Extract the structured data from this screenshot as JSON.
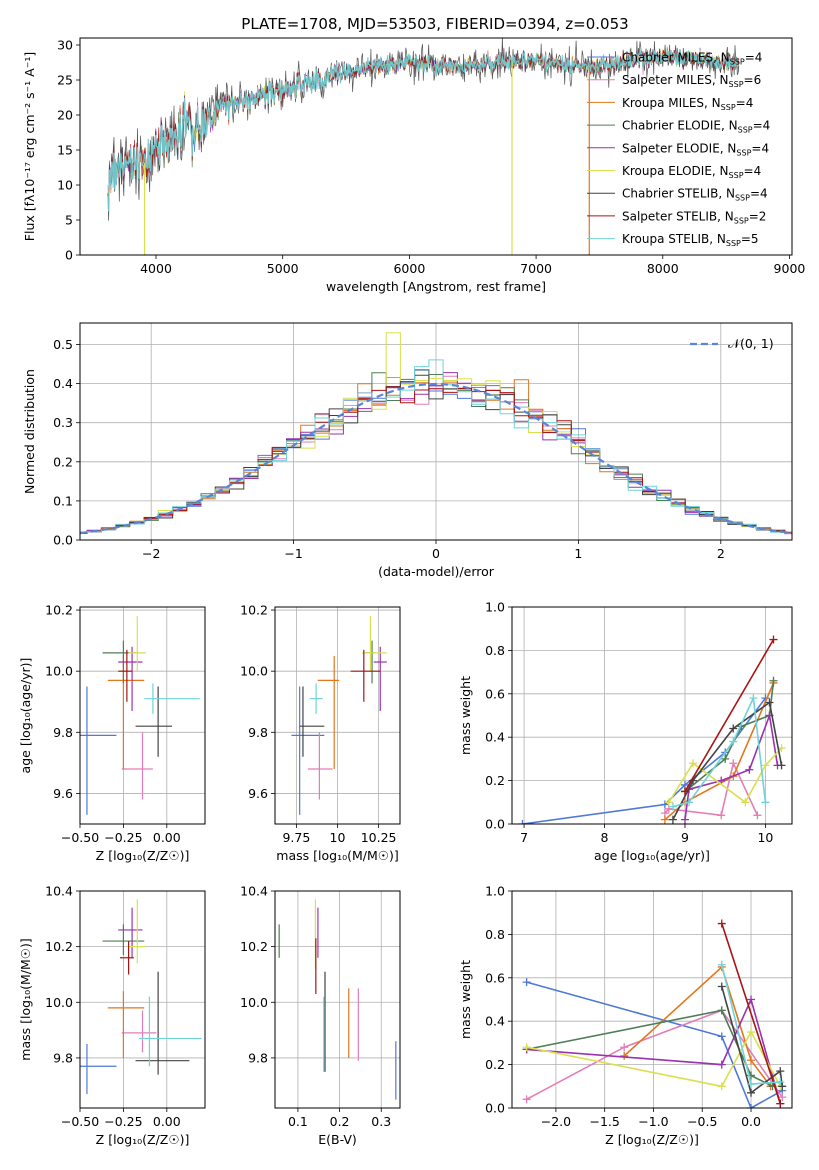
{
  "title": "PLATE=1708, MJD=53503, FIBERID=0394, z=0.053",
  "legend_entries": [
    {
      "name": "Chabrier MILES",
      "n": "4",
      "color": "#4f79d6"
    },
    {
      "name": "Salpeter MILES",
      "n": "6",
      "color": "#e37db7"
    },
    {
      "name": "Kroupa MILES",
      "n": "4",
      "color": "#e0771f"
    },
    {
      "name": "Chabrier ELODIE",
      "n": "4",
      "color": "#4f7d55"
    },
    {
      "name": "Salpeter ELODIE",
      "n": "4",
      "color": "#9933b0"
    },
    {
      "name": "Kroupa ELODIE",
      "n": "4",
      "color": "#d9e04d"
    },
    {
      "name": "Chabrier STELIB",
      "n": "4",
      "color": "#444444"
    },
    {
      "name": "Salpeter STELIB",
      "n": "2",
      "color": "#a81414"
    },
    {
      "name": "Kroupa STELIB",
      "n": "5",
      "color": "#6fd3d9"
    }
  ],
  "chart_data": [
    {
      "id": "spectrum",
      "type": "line",
      "xlabel": "wavelength [Angstrom, rest frame]",
      "ylabel": "Flux [fλ10⁻¹⁷ erg cm⁻² s⁻¹ A⁻¹]",
      "xlim": [
        3400,
        9020
      ],
      "ylim": [
        0,
        31
      ],
      "xticks": [
        4000,
        5000,
        6000,
        7000,
        8000,
        9000
      ],
      "yticks": [
        0,
        5,
        10,
        15,
        20,
        25,
        30
      ],
      "continuum": {
        "x": [
          3620,
          3700,
          3800,
          3900,
          4000,
          4100,
          4200,
          4300,
          4400,
          4500,
          4600,
          4700,
          4800,
          4900,
          5000,
          5100,
          5200,
          5300,
          5400,
          5500,
          5600,
          5700,
          5800,
          5900,
          6000,
          6200,
          6400,
          6600,
          6800,
          7000,
          7200,
          7400,
          7600,
          7800,
          8000,
          8200,
          8400,
          8600
        ],
        "y": [
          11,
          12,
          12.5,
          13,
          14.5,
          16,
          17.5,
          18,
          19.5,
          21,
          21.5,
          22,
          22.5,
          23,
          23.5,
          24,
          24.5,
          25,
          25.5,
          26,
          26.5,
          27,
          27,
          27.2,
          27.5,
          27.2,
          27,
          27.3,
          27.5,
          27.8,
          27.2,
          26.8,
          27.2,
          28,
          28.3,
          28,
          27.8,
          27.2
        ]
      },
      "drop_lines": [
        {
          "x": 3910,
          "color": "#d9e04d"
        },
        {
          "x": 6810,
          "color": "#d9e04d"
        },
        {
          "x": 7420,
          "color": "#e0771f"
        }
      ]
    },
    {
      "id": "residuals",
      "type": "step",
      "xlabel": "(data-model)/error",
      "ylabel": "Normed distribution",
      "xlim": [
        -2.5,
        2.5
      ],
      "ylim": [
        0,
        0.555
      ],
      "xticks": [
        -2,
        -1,
        0,
        1,
        2
      ],
      "yticks": [
        0.0,
        0.1,
        0.2,
        0.3,
        0.4,
        0.5
      ],
      "bin_width": 0.1,
      "gaussian_label": "𝒩(0, 1)",
      "gaussian_color": "#5b85d6",
      "special_bins": [
        {
          "series": 5,
          "x": -0.3,
          "value": 0.53
        },
        {
          "series": 2,
          "x": 0.6,
          "value": 0.41
        }
      ]
    },
    {
      "id": "age-vs-z",
      "type": "errorbar",
      "xlabel": "Z [log₁₀(Z/Z☉)]",
      "ylabel": "age  [log₁₀(age/yr)]",
      "xlim": [
        -0.5,
        0.22
      ],
      "ylim": [
        9.5,
        10.21
      ],
      "xticks": [
        -0.5,
        -0.25,
        0.0
      ],
      "xtick_labels": [
        "−0.50",
        "−0.25",
        "0.00"
      ],
      "yticks": [
        9.6,
        9.8,
        10.0,
        10.2
      ],
      "points": [
        {
          "color": "#4f79d6",
          "x": -0.46,
          "xerr": [
            0.06,
            0.17
          ],
          "y": 9.79,
          "yerr": [
            0.26,
            0.16
          ]
        },
        {
          "color": "#e37db7",
          "x": -0.14,
          "xerr": [
            0.12,
            0.06
          ],
          "y": 9.68,
          "yerr": [
            0.1,
            0.12
          ]
        },
        {
          "color": "#e0771f",
          "x": -0.25,
          "xerr": [
            0.09,
            0.12
          ],
          "y": 9.97,
          "yerr": [
            0.29,
            0.08
          ]
        },
        {
          "color": "#4f7d55",
          "x": -0.25,
          "xerr": [
            0.12,
            0.08
          ],
          "y": 10.06,
          "yerr": [
            0.1,
            0.04
          ]
        },
        {
          "color": "#9933b0",
          "x": -0.2,
          "xerr": [
            0.08,
            0.06
          ],
          "y": 10.03,
          "yerr": [
            0.16,
            0.05
          ]
        },
        {
          "color": "#d9e04d",
          "x": -0.17,
          "xerr": [
            0.05,
            0.05
          ],
          "y": 10.06,
          "yerr": [
            0.06,
            0.12
          ]
        },
        {
          "color": "#444444",
          "x": -0.05,
          "xerr": [
            0.13,
            0.08
          ],
          "y": 9.82,
          "yerr": [
            0.1,
            0.13
          ]
        },
        {
          "color": "#a81414",
          "x": -0.23,
          "xerr": [
            0.05,
            0.03
          ],
          "y": 10.0,
          "yerr": [
            0.1,
            0.07
          ]
        },
        {
          "color": "#6fd3d9",
          "x": -0.08,
          "xerr": [
            0.05,
            0.27
          ],
          "y": 9.91,
          "yerr": [
            0.05,
            0.05
          ]
        }
      ]
    },
    {
      "id": "age-vs-mass",
      "type": "errorbar",
      "xlabel": "mass [log₁₀(M/M☉)]",
      "ylabel": "",
      "xlim": [
        9.62,
        10.38
      ],
      "ylim": [
        9.5,
        10.21
      ],
      "xticks": [
        9.75,
        10.0,
        10.25
      ],
      "yticks": [
        9.6,
        9.8,
        10.0,
        10.2
      ],
      "points": [
        {
          "color": "#4f79d6",
          "x": 9.77,
          "xerr": [
            0.05,
            0.15
          ],
          "y": 9.79,
          "yerr": [
            0.26,
            0.16
          ]
        },
        {
          "color": "#e37db7",
          "x": 9.89,
          "xerr": [
            0.07,
            0.08
          ],
          "y": 9.68,
          "yerr": [
            0.1,
            0.12
          ]
        },
        {
          "color": "#e0771f",
          "x": 9.98,
          "xerr": [
            0.1,
            0.03
          ],
          "y": 9.97,
          "yerr": [
            0.29,
            0.08
          ]
        },
        {
          "color": "#4f7d55",
          "x": 10.21,
          "xerr": [
            0.04,
            0.02
          ],
          "y": 10.06,
          "yerr": [
            0.1,
            0.04
          ]
        },
        {
          "color": "#9933b0",
          "x": 10.26,
          "xerr": [
            0.04,
            0.04
          ],
          "y": 10.03,
          "yerr": [
            0.16,
            0.05
          ]
        },
        {
          "color": "#d9e04d",
          "x": 10.2,
          "xerr": [
            0.05,
            0.1
          ],
          "y": 10.06,
          "yerr": [
            0.06,
            0.12
          ]
        },
        {
          "color": "#444444",
          "x": 9.79,
          "xerr": [
            0.02,
            0.13
          ],
          "y": 9.82,
          "yerr": [
            0.1,
            0.13
          ]
        },
        {
          "color": "#a81414",
          "x": 10.16,
          "xerr": [
            0.08,
            0.1
          ],
          "y": 10.0,
          "yerr": [
            0.1,
            0.07
          ]
        },
        {
          "color": "#6fd3d9",
          "x": 9.87,
          "xerr": [
            0.04,
            0.04
          ],
          "y": 9.91,
          "yerr": [
            0.05,
            0.05
          ]
        }
      ]
    },
    {
      "id": "weight-vs-age",
      "type": "line",
      "xlabel": "age  [log₁₀(age/yr)]",
      "ylabel": "mass weight",
      "xlim": [
        6.85,
        10.33
      ],
      "ylim": [
        0,
        1.0
      ],
      "xticks": [
        7,
        8,
        9,
        10
      ],
      "yticks": [
        0.0,
        0.2,
        0.4,
        0.6,
        0.8,
        1.0
      ],
      "series": [
        {
          "color": "#4f79d6",
          "x": [
            6.98,
            8.75,
            9.0,
            9.5,
            10.0
          ],
          "y": [
            0.0,
            0.09,
            0.18,
            0.33,
            0.58
          ]
        },
        {
          "color": "#e37db7",
          "x": [
            8.75,
            8.8,
            9.45,
            9.6,
            9.9
          ],
          "y": [
            0.05,
            0.07,
            0.04,
            0.28,
            0.04
          ]
        },
        {
          "color": "#e0771f",
          "x": [
            8.75,
            9.0,
            9.6,
            10.1
          ],
          "y": [
            0.02,
            0.1,
            0.22,
            0.65
          ]
        },
        {
          "color": "#4f7d55",
          "x": [
            9.0,
            9.5,
            9.7,
            10.05,
            10.1
          ],
          "y": [
            0.15,
            0.3,
            0.45,
            0.5,
            0.66
          ]
        },
        {
          "color": "#9933b0",
          "x": [
            9.0,
            9.05,
            9.45,
            9.8,
            10.05,
            10.15
          ],
          "y": [
            0.02,
            0.16,
            0.2,
            0.25,
            0.5,
            0.27
          ]
        },
        {
          "color": "#d9e04d",
          "x": [
            8.8,
            9.1,
            9.75,
            10.0,
            10.2
          ],
          "y": [
            0.1,
            0.28,
            0.1,
            0.27,
            0.35
          ]
        },
        {
          "color": "#444444",
          "x": [
            8.85,
            9.1,
            9.6,
            10.05,
            10.2
          ],
          "y": [
            0.02,
            0.2,
            0.44,
            0.56,
            0.27
          ]
        },
        {
          "color": "#a81414",
          "x": [
            9.0,
            10.1
          ],
          "y": [
            0.15,
            0.85
          ]
        },
        {
          "color": "#6fd3d9",
          "x": [
            8.85,
            9.05,
            9.6,
            9.85,
            10.0
          ],
          "y": [
            0.08,
            0.1,
            0.38,
            0.58,
            0.1
          ]
        }
      ]
    },
    {
      "id": "mass-vs-z",
      "type": "errorbar",
      "xlabel": "Z [log₁₀(Z/Z☉)]",
      "ylabel": "mass [log₁₀(M/M☉)]",
      "xlim": [
        -0.5,
        0.22
      ],
      "ylim": [
        9.62,
        10.4
      ],
      "xticks": [
        -0.5,
        -0.25,
        0.0
      ],
      "xtick_labels": [
        "−0.50",
        "−0.25",
        "0.00"
      ],
      "yticks": [
        9.8,
        10.0,
        10.2,
        10.4
      ],
      "points": [
        {
          "color": "#4f79d6",
          "x": -0.46,
          "xerr": [
            0.06,
            0.17
          ],
          "y": 9.77,
          "yerr": [
            0.1,
            0.08
          ]
        },
        {
          "color": "#e37db7",
          "x": -0.14,
          "xerr": [
            0.12,
            0.08
          ],
          "y": 9.89,
          "yerr": [
            0.07,
            0.08
          ]
        },
        {
          "color": "#e0771f",
          "x": -0.25,
          "xerr": [
            0.09,
            0.12
          ],
          "y": 9.98,
          "yerr": [
            0.18,
            0.06
          ]
        },
        {
          "color": "#4f7d55",
          "x": -0.25,
          "xerr": [
            0.12,
            0.12
          ],
          "y": 10.22,
          "yerr": [
            0.05,
            0.06
          ]
        },
        {
          "color": "#9933b0",
          "x": -0.2,
          "xerr": [
            0.08,
            0.06
          ],
          "y": 10.26,
          "yerr": [
            0.1,
            0.08
          ]
        },
        {
          "color": "#d9e04d",
          "x": -0.17,
          "xerr": [
            0.05,
            0.05
          ],
          "y": 10.2,
          "yerr": [
            0.06,
            0.17
          ]
        },
        {
          "color": "#444444",
          "x": -0.05,
          "xerr": [
            0.13,
            0.18
          ],
          "y": 9.79,
          "yerr": [
            0.05,
            0.32
          ]
        },
        {
          "color": "#a81414",
          "x": -0.22,
          "xerr": [
            0.05,
            0.03
          ],
          "y": 10.16,
          "yerr": [
            0.06,
            0.06
          ]
        },
        {
          "color": "#6fd3d9",
          "x": -0.1,
          "xerr": [
            0.06,
            0.3
          ],
          "y": 9.87,
          "yerr": [
            0.1,
            0.15
          ]
        }
      ]
    },
    {
      "id": "mass-vs-ebv",
      "type": "errorbar",
      "xlabel": "E(B-V)",
      "ylabel": "",
      "xlim": [
        0.045,
        0.345
      ],
      "ylim": [
        9.62,
        10.4
      ],
      "xticks": [
        0.1,
        0.2,
        0.3
      ],
      "yticks": [
        9.8,
        10.0,
        10.2,
        10.4
      ],
      "points": [
        {
          "color": "#4f79d6",
          "x": 0.335,
          "xerr": [
            0,
            0
          ],
          "y": 9.77,
          "yerr": [
            0.12,
            0.09
          ]
        },
        {
          "color": "#e37db7",
          "x": 0.245,
          "xerr": [
            0,
            0
          ],
          "y": 9.89,
          "yerr": [
            0.1,
            0.16
          ]
        },
        {
          "color": "#e0771f",
          "x": 0.222,
          "xerr": [
            0,
            0
          ],
          "y": 9.98,
          "yerr": [
            0.18,
            0.07
          ]
        },
        {
          "color": "#4f7d55",
          "x": 0.055,
          "xerr": [
            0,
            0
          ],
          "y": 10.22,
          "yerr": [
            0.06,
            0.06
          ]
        },
        {
          "color": "#9933b0",
          "x": 0.148,
          "xerr": [
            0,
            0
          ],
          "y": 10.26,
          "yerr": [
            0.1,
            0.08
          ]
        },
        {
          "color": "#d9e04d",
          "x": 0.142,
          "xerr": [
            0,
            0
          ],
          "y": 10.2,
          "yerr": [
            0.08,
            0.17
          ]
        },
        {
          "color": "#444444",
          "x": 0.165,
          "xerr": [
            0,
            0
          ],
          "y": 9.79,
          "yerr": [
            0.04,
            0.32
          ]
        },
        {
          "color": "#a81414",
          "x": 0.143,
          "xerr": [
            0,
            0
          ],
          "y": 10.16,
          "yerr": [
            0.13,
            0.07
          ]
        },
        {
          "color": "#6fd3d9",
          "x": 0.162,
          "xerr": [
            0,
            0
          ],
          "y": 9.87,
          "yerr": [
            0.12,
            0.15
          ]
        }
      ]
    },
    {
      "id": "weight-vs-z",
      "type": "line",
      "xlabel": "Z [log₁₀(Z/Z☉)]",
      "ylabel": "mass weight",
      "xlim": [
        -2.45,
        0.42
      ],
      "ylim": [
        0,
        1.0
      ],
      "xticks": [
        -2.0,
        -1.5,
        -1.0,
        -0.5,
        0.0
      ],
      "xtick_labels": [
        "−2.0",
        "−1.5",
        "−1.0",
        "−0.5",
        "0.0"
      ],
      "yticks": [
        0.0,
        0.2,
        0.4,
        0.6,
        0.8,
        1.0
      ],
      "series": [
        {
          "color": "#4f79d6",
          "x": [
            -2.3,
            -0.3,
            0.0,
            0.32
          ],
          "y": [
            0.58,
            0.33,
            0.0,
            0.08
          ]
        },
        {
          "color": "#e37db7",
          "x": [
            -2.3,
            -1.3,
            -0.3,
            0.32
          ],
          "y": [
            0.04,
            0.28,
            0.45,
            0.05
          ]
        },
        {
          "color": "#e0771f",
          "x": [
            -1.3,
            -0.3,
            0.0,
            0.2
          ],
          "y": [
            0.24,
            0.65,
            0.22,
            0.1
          ]
        },
        {
          "color": "#4f7d55",
          "x": [
            -2.3,
            -0.3,
            0.0,
            0.22
          ],
          "y": [
            0.27,
            0.45,
            0.15,
            0.1
          ]
        },
        {
          "color": "#9933b0",
          "x": [
            -2.3,
            -0.3,
            0.0,
            0.3
          ],
          "y": [
            0.27,
            0.2,
            0.5,
            0.02
          ]
        },
        {
          "color": "#d9e04d",
          "x": [
            -2.3,
            -0.3,
            0.0,
            0.3
          ],
          "y": [
            0.28,
            0.1,
            0.35,
            0.1
          ]
        },
        {
          "color": "#444444",
          "x": [
            -0.3,
            0.0,
            0.3,
            0.32
          ],
          "y": [
            0.56,
            0.07,
            0.17,
            0.1
          ]
        },
        {
          "color": "#a81414",
          "x": [
            -0.3,
            0.3
          ],
          "y": [
            0.85,
            0.02
          ]
        },
        {
          "color": "#6fd3d9",
          "x": [
            -0.3,
            0.0,
            0.3
          ],
          "y": [
            0.66,
            0.11,
            0.12
          ]
        }
      ]
    }
  ]
}
